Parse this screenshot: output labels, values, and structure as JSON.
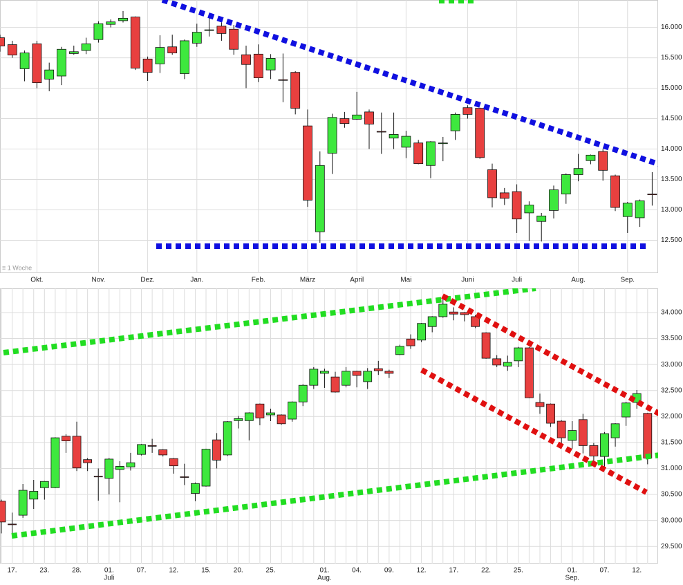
{
  "chart_data": [
    {
      "type": "candlestick",
      "annotation": "≡ 1 Woche",
      "categories": [
        null,
        null,
        null,
        "Okt.",
        null,
        null,
        null,
        null,
        "Nov.",
        null,
        null,
        null,
        "Dez.",
        null,
        null,
        null,
        "Jan.",
        null,
        null,
        null,
        null,
        "Feb.",
        null,
        null,
        null,
        "März",
        null,
        null,
        null,
        "April",
        null,
        null,
        null,
        "Mai",
        null,
        null,
        null,
        null,
        "Juni",
        null,
        null,
        null,
        "Juli",
        null,
        null,
        null,
        null,
        "Aug.",
        null,
        null,
        null,
        "Sep.",
        null,
        null
      ],
      "open": [
        15830,
        15716,
        15320,
        15730,
        15150,
        15200,
        15570,
        15620,
        15800,
        16050,
        16110,
        16170,
        15480,
        15400,
        15680,
        15240,
        15740,
        15950,
        16020,
        15970,
        15550,
        15560,
        15300,
        15140,
        15260,
        14380,
        12640,
        13930,
        14500,
        14490,
        14610,
        14290,
        14180,
        14030,
        14100,
        13730,
        14090,
        14300,
        14680,
        14670,
        13660,
        13280,
        13300,
        12950,
        12810,
        12990,
        13260,
        13580,
        13810,
        13960,
        13560,
        12890,
        12870,
        13260
      ],
      "high": [
        15880,
        15780,
        15620,
        15780,
        15420,
        15680,
        15700,
        15830,
        16100,
        16130,
        16270,
        16180,
        15520,
        15870,
        15880,
        15800,
        16060,
        16220,
        16080,
        16040,
        15700,
        15720,
        15560,
        15570,
        15280,
        14650,
        13960,
        14580,
        14610,
        14940,
        14650,
        14600,
        14600,
        14300,
        14150,
        14130,
        14200,
        14600,
        14720,
        14680,
        13760,
        13360,
        13420,
        13140,
        12950,
        13400,
        13600,
        13920,
        13910,
        14000,
        13580,
        13130,
        13170,
        13620
      ],
      "low": [
        15600,
        15500,
        15114,
        15000,
        14950,
        15050,
        15550,
        15560,
        15750,
        16000,
        16080,
        15300,
        15120,
        15250,
        15550,
        15150,
        15680,
        15850,
        15780,
        15550,
        15000,
        15100,
        15150,
        14770,
        14570,
        13050,
        12460,
        13590,
        14350,
        14480,
        14000,
        13920,
        14000,
        13850,
        13750,
        13520,
        13800,
        14150,
        14500,
        13840,
        13040,
        13080,
        12620,
        12490,
        12480,
        12860,
        13100,
        13470,
        13750,
        13480,
        12980,
        12620,
        12720,
        13070
      ],
      "close": [
        15693,
        15545,
        15580,
        15090,
        15300,
        15640,
        15600,
        15730,
        16060,
        16090,
        16150,
        15330,
        15260,
        15670,
        15580,
        15780,
        15920,
        15960,
        15900,
        15640,
        15390,
        15170,
        15490,
        15130,
        14670,
        13160,
        13730,
        14520,
        14420,
        14560,
        14410,
        14280,
        14240,
        14210,
        13760,
        14120,
        14100,
        14570,
        14570,
        13860,
        13200,
        13190,
        12850,
        13080,
        12900,
        13330,
        13580,
        13680,
        13900,
        13650,
        13040,
        13110,
        13150,
        13250
      ],
      "up_color": "#3ee83e",
      "down_color": "#e8403f",
      "ylim": [
        11960,
        16450
      ],
      "yticks": [
        {
          "value": 12500,
          "label": "12.500"
        },
        {
          "value": 13000,
          "label": "13.000"
        },
        {
          "value": 13500,
          "label": "13.500"
        },
        {
          "value": 14000,
          "label": "14.000"
        },
        {
          "value": 14500,
          "label": "14.500"
        },
        {
          "value": 15000,
          "label": "15.000"
        },
        {
          "value": 15500,
          "label": "15.500"
        },
        {
          "value": 16000,
          "label": "16.000"
        }
      ],
      "grid": true,
      "xgrid": "labels"
    },
    {
      "type": "candlestick",
      "categories": [
        null,
        "17.",
        null,
        null,
        "23.",
        null,
        null,
        "28.",
        null,
        null,
        "01.",
        null,
        null,
        "07.",
        null,
        null,
        "12.",
        null,
        null,
        "15.",
        null,
        null,
        "20.",
        null,
        null,
        "25.",
        null,
        null,
        null,
        null,
        "01.",
        null,
        null,
        "04.",
        null,
        null,
        "09.",
        null,
        null,
        "12.",
        null,
        null,
        "17.",
        null,
        null,
        "22.",
        null,
        null,
        "25.",
        null,
        null,
        null,
        null,
        "01.",
        null,
        null,
        "07.",
        null,
        null,
        "12.",
        null
      ],
      "months": [
        null,
        null,
        null,
        null,
        null,
        null,
        null,
        null,
        null,
        null,
        "Juli",
        null,
        null,
        null,
        null,
        null,
        null,
        null,
        null,
        null,
        null,
        null,
        null,
        null,
        null,
        null,
        null,
        null,
        null,
        null,
        "Aug.",
        null,
        null,
        null,
        null,
        null,
        null,
        null,
        null,
        null,
        null,
        null,
        null,
        null,
        null,
        null,
        null,
        null,
        null,
        null,
        null,
        null,
        null,
        "Sep.",
        null,
        null,
        null,
        null,
        null,
        null,
        null
      ],
      "open": [
        30370,
        29930,
        30100,
        30410,
        30630,
        30630,
        31620,
        31620,
        31170,
        30850,
        30810,
        30980,
        31030,
        31270,
        31440,
        31360,
        31190,
        30840,
        30520,
        30660,
        31550,
        31260,
        31920,
        31920,
        32240,
        32030,
        32030,
        31950,
        32280,
        32600,
        32830,
        32760,
        32600,
        32870,
        32670,
        32920,
        32870,
        33190,
        33490,
        33470,
        33730,
        33920,
        34010,
        34000,
        33920,
        33610,
        33110,
        32970,
        33070,
        33320,
        32270,
        32240,
        31910,
        31540,
        31940,
        31440,
        31230,
        31590,
        31990,
        32270,
        32060
      ],
      "high": [
        30400,
        30150,
        30700,
        30780,
        30760,
        31600,
        31660,
        31900,
        31200,
        31000,
        31200,
        31140,
        31300,
        31470,
        31570,
        31370,
        31200,
        31090,
        30730,
        31380,
        31680,
        31910,
        32010,
        32080,
        32250,
        32150,
        32040,
        32290,
        32620,
        32950,
        32920,
        32860,
        32950,
        32880,
        32930,
        33070,
        32900,
        33380,
        33580,
        33800,
        33930,
        34280,
        34100,
        34010,
        33950,
        33620,
        33180,
        33170,
        33340,
        33340,
        32440,
        32250,
        31930,
        31910,
        32050,
        31490,
        31700,
        31870,
        32280,
        32510,
        32070
      ],
      "low": [
        29750,
        29700,
        30050,
        30220,
        30400,
        30620,
        31300,
        30950,
        30950,
        30380,
        30500,
        30350,
        30960,
        31250,
        31300,
        31230,
        30900,
        30680,
        30370,
        30650,
        31000,
        31240,
        31770,
        31540,
        31830,
        31910,
        31840,
        31900,
        32200,
        32530,
        32550,
        32460,
        32560,
        32560,
        32530,
        32800,
        32740,
        33180,
        33300,
        33430,
        33620,
        33900,
        33850,
        33830,
        33700,
        33110,
        32950,
        32880,
        32950,
        32350,
        32050,
        31800,
        31390,
        31380,
        31290,
        31050,
        31040,
        31420,
        31820,
        32150,
        31080
      ],
      "close": [
        29970,
        29920,
        30580,
        30560,
        30750,
        31590,
        31530,
        31010,
        31110,
        30840,
        31180,
        31040,
        31110,
        31460,
        31430,
        31260,
        31050,
        30830,
        30710,
        31370,
        31160,
        31900,
        31960,
        32070,
        31970,
        32070,
        31860,
        32280,
        32600,
        32910,
        32870,
        32470,
        32870,
        32790,
        32870,
        32880,
        32830,
        33350,
        33360,
        33790,
        33920,
        34160,
        33970,
        33960,
        33730,
        33120,
        32990,
        33040,
        33320,
        32360,
        32190,
        31870,
        31590,
        31730,
        31440,
        31240,
        31670,
        31860,
        32260,
        32440,
        31200
      ],
      "up_color": "#3ee83e",
      "down_color": "#e8403f",
      "ylim": [
        29170,
        34465
      ],
      "yticks": [
        {
          "value": 29500,
          "label": "29.500"
        },
        {
          "value": 30000,
          "label": "30.000"
        },
        {
          "value": 30500,
          "label": "30.500"
        },
        {
          "value": 31000,
          "label": "31.000"
        },
        {
          "value": 31500,
          "label": "31.500"
        },
        {
          "value": 32000,
          "label": "32.000"
        },
        {
          "value": 32500,
          "label": "32.500"
        },
        {
          "value": 33000,
          "label": "33.000"
        },
        {
          "value": 33500,
          "label": "33.500"
        },
        {
          "value": 34000,
          "label": "34.000"
        }
      ],
      "grid": true,
      "xgrid": "every"
    }
  ]
}
